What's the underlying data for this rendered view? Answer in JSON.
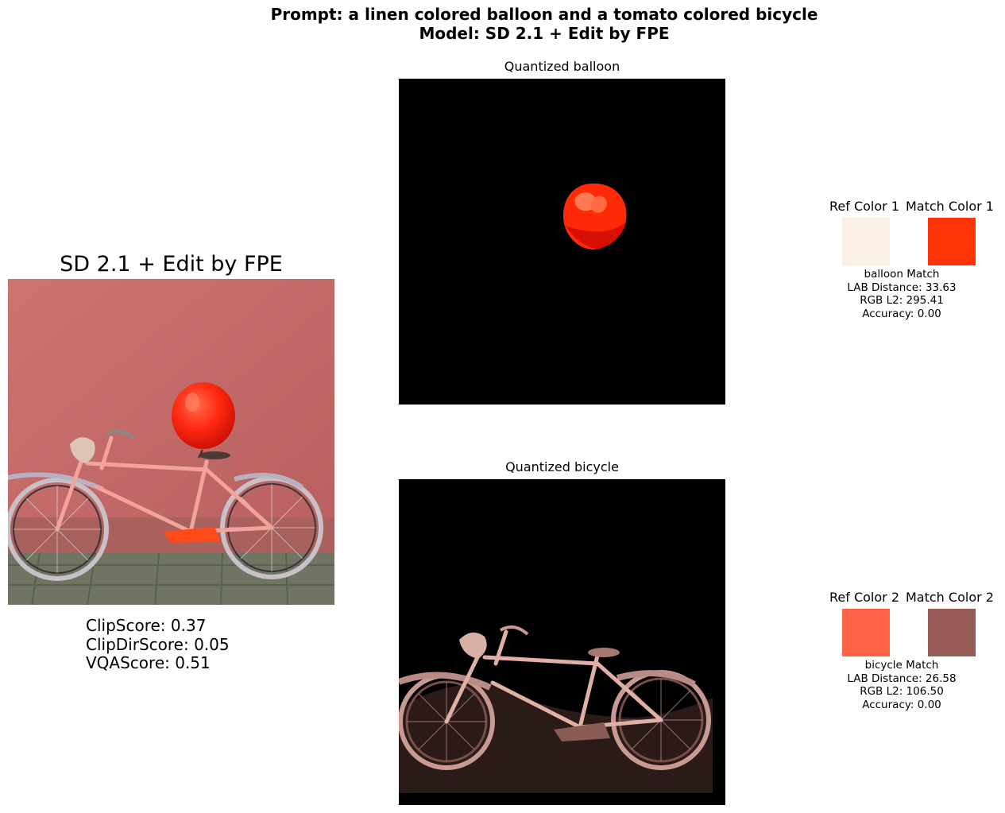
{
  "figure": {
    "title_line1": "Prompt: a linen colored balloon and a tomato colored bicycle",
    "title_line2": "Model: SD 2.1 + Edit by FPE"
  },
  "main_panel": {
    "title": "SD 2.1 + Edit by FPE",
    "scores": {
      "clip": "ClipScore: 0.37",
      "clipdir": "ClipDirScore: 0.05",
      "vqa": "VQAScore: 0.51"
    },
    "colors": {
      "wall": "#cf7876",
      "balloon": "#ff2a10",
      "ground": "#6f7562"
    }
  },
  "quantized": [
    {
      "title": "Quantized balloon"
    },
    {
      "title": "Quantized bicycle"
    }
  ],
  "matches": [
    {
      "ref_label": "Ref Color 1",
      "match_label": "Match Color 1",
      "ref_color": "#faf0e6",
      "match_color": "#ff3409",
      "caption": "balloon Match",
      "lab": "LAB Distance: 33.63",
      "rgb": "RGB L2: 295.41",
      "acc": "Accuracy: 0.00"
    },
    {
      "ref_label": "Ref Color 2",
      "match_label": "Match Color 2",
      "ref_color": "#ff6347",
      "match_color": "#955956",
      "caption": "bicycle Match",
      "lab": "LAB Distance: 26.58",
      "rgb": "RGB L2: 106.50",
      "acc": "Accuracy: 0.00"
    }
  ]
}
